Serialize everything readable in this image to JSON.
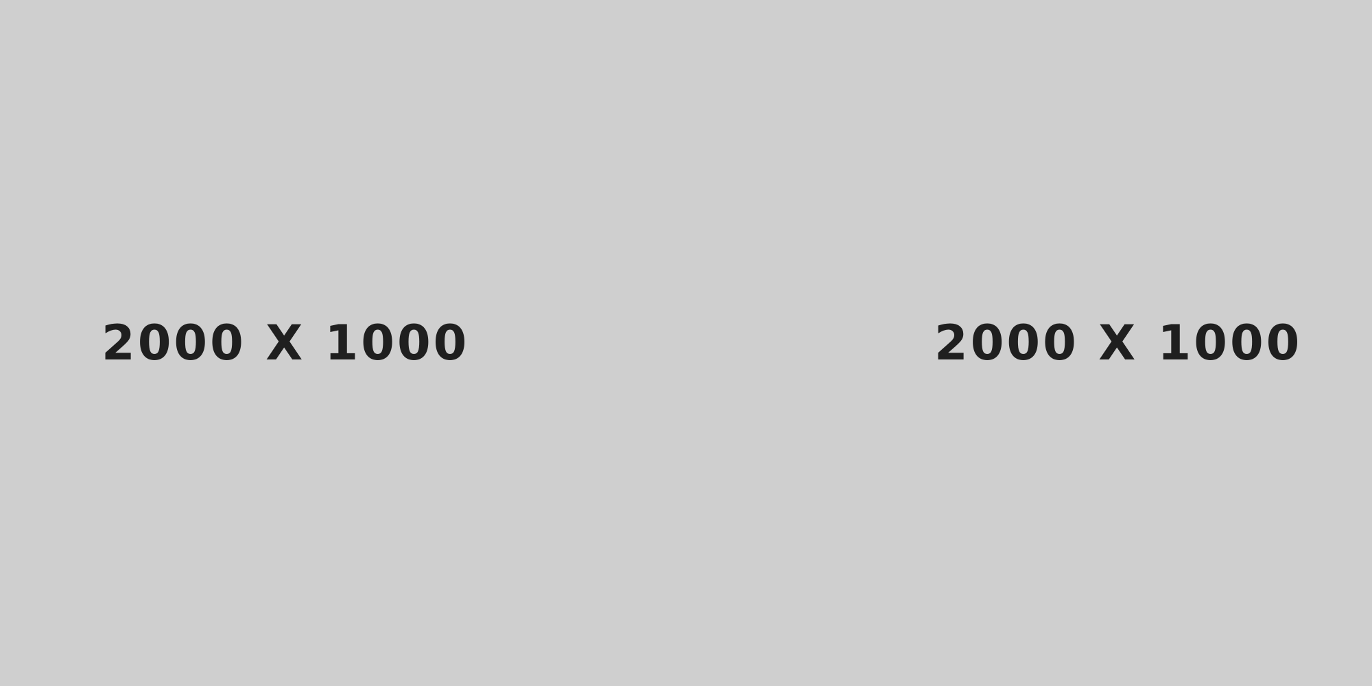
{
  "placeholder": {
    "labels": [
      "2000 X 1000",
      "2000 X 1000"
    ],
    "background_color": "#cfcfcf",
    "text_color": "#1f1f1f"
  }
}
